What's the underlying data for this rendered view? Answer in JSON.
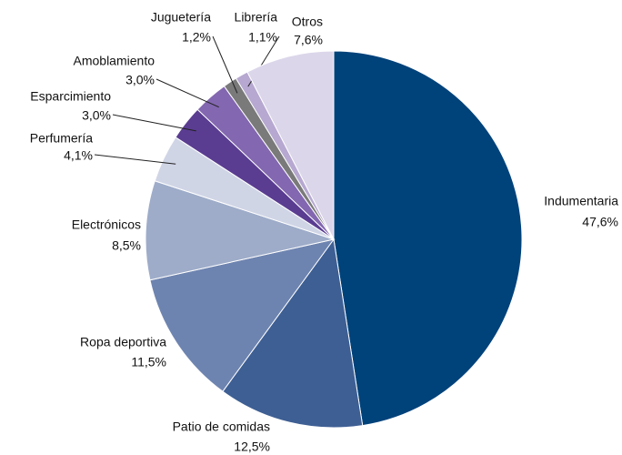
{
  "chart_data": {
    "type": "pie",
    "categories": [
      "Indumentaria",
      "Patio de comidas",
      "Ropa deportiva",
      "Electrónicos",
      "Perfumería",
      "Esparcimiento",
      "Amoblamiento",
      "Juguetería",
      "Librería",
      "Otros"
    ],
    "values": [
      47.6,
      12.5,
      11.5,
      8.5,
      4.1,
      3.0,
      3.0,
      1.2,
      1.1,
      7.6
    ],
    "value_labels": [
      "47,6%",
      "12,5%",
      "11,5%",
      "8,5%",
      "4,1%",
      "3,0%",
      "3,0%",
      "1,2%",
      "1,1%",
      "7,6%"
    ],
    "colors": [
      "#00427a",
      "#3e5f94",
      "#6e84b0",
      "#9eacc9",
      "#d0d5e6",
      "#5a3d91",
      "#8367b0",
      "#7a7a7a",
      "#b6a8d0",
      "#dcd6ea"
    ]
  }
}
